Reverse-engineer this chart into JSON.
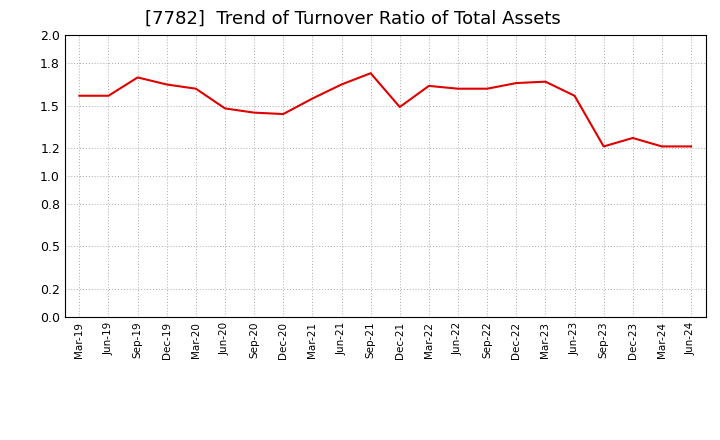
{
  "title": "[7782]  Trend of Turnover Ratio of Total Assets",
  "x_labels": [
    "Mar-19",
    "Jun-19",
    "Sep-19",
    "Dec-19",
    "Mar-20",
    "Jun-20",
    "Sep-20",
    "Dec-20",
    "Mar-21",
    "Jun-21",
    "Sep-21",
    "Dec-21",
    "Mar-22",
    "Jun-22",
    "Sep-22",
    "Dec-22",
    "Mar-23",
    "Jun-23",
    "Sep-23",
    "Dec-23",
    "Mar-24",
    "Jun-24"
  ],
  "values": [
    1.57,
    1.57,
    1.7,
    1.65,
    1.62,
    1.48,
    1.45,
    1.44,
    1.55,
    1.65,
    1.73,
    1.49,
    1.64,
    1.62,
    1.62,
    1.66,
    1.67,
    1.57,
    1.21,
    1.27,
    1.21,
    1.21
  ],
  "line_color": "#e00000",
  "ylim": [
    0.0,
    2.0
  ],
  "yticks": [
    0.0,
    0.2,
    0.5,
    0.8,
    1.0,
    1.2,
    1.5,
    1.8,
    2.0
  ],
  "grid_color": "#aaaaaa",
  "background_color": "#ffffff",
  "title_fontsize": 13,
  "line_width": 1.5
}
